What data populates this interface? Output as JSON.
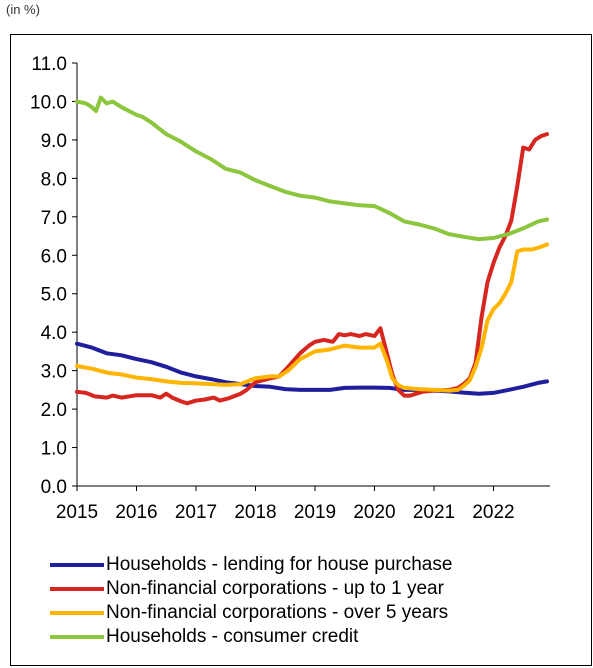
{
  "unit_label": "(in %)",
  "chart_data": {
    "type": "line",
    "title": "",
    "xlabel": "",
    "ylabel": "(in %)",
    "xlim": [
      2015,
      2022.95
    ],
    "ylim": [
      0,
      11
    ],
    "x_ticks": [
      "2015",
      "2016",
      "2017",
      "2018",
      "2019",
      "2020",
      "2021",
      "2022"
    ],
    "y_ticks": [
      "0.0",
      "1.0",
      "2.0",
      "3.0",
      "4.0",
      "5.0",
      "6.0",
      "7.0",
      "8.0",
      "9.0",
      "10.0",
      "11.0"
    ],
    "grid": false,
    "legend_position": "bottom",
    "series": [
      {
        "name": "Households - lending for house purchase",
        "color": "#1f1f9e",
        "points": [
          [
            2015.0,
            3.7
          ],
          [
            2015.25,
            3.6
          ],
          [
            2015.5,
            3.45
          ],
          [
            2015.75,
            3.4
          ],
          [
            2016.0,
            3.3
          ],
          [
            2016.25,
            3.22
          ],
          [
            2016.5,
            3.1
          ],
          [
            2016.75,
            2.95
          ],
          [
            2017.0,
            2.85
          ],
          [
            2017.25,
            2.78
          ],
          [
            2017.5,
            2.7
          ],
          [
            2017.75,
            2.65
          ],
          [
            2018.0,
            2.6
          ],
          [
            2018.25,
            2.58
          ],
          [
            2018.5,
            2.52
          ],
          [
            2018.75,
            2.5
          ],
          [
            2019.0,
            2.5
          ],
          [
            2019.25,
            2.5
          ],
          [
            2019.5,
            2.55
          ],
          [
            2019.75,
            2.56
          ],
          [
            2020.0,
            2.56
          ],
          [
            2020.25,
            2.55
          ],
          [
            2020.5,
            2.5
          ],
          [
            2020.75,
            2.5
          ],
          [
            2021.0,
            2.48
          ],
          [
            2021.25,
            2.46
          ],
          [
            2021.5,
            2.43
          ],
          [
            2021.75,
            2.4
          ],
          [
            2022.0,
            2.42
          ],
          [
            2022.25,
            2.5
          ],
          [
            2022.5,
            2.58
          ],
          [
            2022.75,
            2.68
          ],
          [
            2022.9,
            2.72
          ]
        ]
      },
      {
        "name": "Non-financial corporations - up to 1 year",
        "color": "#d7261f",
        "points": [
          [
            2015.0,
            2.45
          ],
          [
            2015.15,
            2.42
          ],
          [
            2015.3,
            2.33
          ],
          [
            2015.5,
            2.3
          ],
          [
            2015.6,
            2.35
          ],
          [
            2015.75,
            2.3
          ],
          [
            2016.0,
            2.36
          ],
          [
            2016.25,
            2.36
          ],
          [
            2016.4,
            2.3
          ],
          [
            2016.5,
            2.4
          ],
          [
            2016.6,
            2.3
          ],
          [
            2016.75,
            2.2
          ],
          [
            2016.85,
            2.15
          ],
          [
            2017.0,
            2.22
          ],
          [
            2017.15,
            2.25
          ],
          [
            2017.3,
            2.3
          ],
          [
            2017.4,
            2.22
          ],
          [
            2017.55,
            2.28
          ],
          [
            2017.75,
            2.4
          ],
          [
            2017.85,
            2.5
          ],
          [
            2018.0,
            2.7
          ],
          [
            2018.25,
            2.8
          ],
          [
            2018.4,
            2.85
          ],
          [
            2018.55,
            3.1
          ],
          [
            2018.75,
            3.45
          ],
          [
            2018.9,
            3.65
          ],
          [
            2019.0,
            3.75
          ],
          [
            2019.15,
            3.8
          ],
          [
            2019.3,
            3.75
          ],
          [
            2019.4,
            3.95
          ],
          [
            2019.5,
            3.92
          ],
          [
            2019.6,
            3.95
          ],
          [
            2019.75,
            3.9
          ],
          [
            2019.85,
            3.95
          ],
          [
            2020.0,
            3.9
          ],
          [
            2020.1,
            4.1
          ],
          [
            2020.2,
            3.5
          ],
          [
            2020.3,
            2.9
          ],
          [
            2020.4,
            2.5
          ],
          [
            2020.5,
            2.35
          ],
          [
            2020.6,
            2.35
          ],
          [
            2020.7,
            2.4
          ],
          [
            2020.8,
            2.45
          ],
          [
            2021.0,
            2.48
          ],
          [
            2021.25,
            2.5
          ],
          [
            2021.4,
            2.55
          ],
          [
            2021.5,
            2.65
          ],
          [
            2021.6,
            2.8
          ],
          [
            2021.7,
            3.2
          ],
          [
            2021.8,
            4.4
          ],
          [
            2021.9,
            5.3
          ],
          [
            2022.0,
            5.8
          ],
          [
            2022.1,
            6.2
          ],
          [
            2022.2,
            6.5
          ],
          [
            2022.3,
            6.9
          ],
          [
            2022.4,
            7.8
          ],
          [
            2022.5,
            8.8
          ],
          [
            2022.6,
            8.75
          ],
          [
            2022.7,
            9.0
          ],
          [
            2022.8,
            9.1
          ],
          [
            2022.9,
            9.15
          ]
        ]
      },
      {
        "name": "Non-financial corporations - over 5 years",
        "color": "#ffb400",
        "points": [
          [
            2015.0,
            3.12
          ],
          [
            2015.25,
            3.05
          ],
          [
            2015.5,
            2.95
          ],
          [
            2015.75,
            2.9
          ],
          [
            2016.0,
            2.82
          ],
          [
            2016.25,
            2.78
          ],
          [
            2016.5,
            2.72
          ],
          [
            2016.75,
            2.68
          ],
          [
            2017.0,
            2.67
          ],
          [
            2017.25,
            2.65
          ],
          [
            2017.5,
            2.63
          ],
          [
            2017.75,
            2.65
          ],
          [
            2018.0,
            2.8
          ],
          [
            2018.25,
            2.85
          ],
          [
            2018.4,
            2.85
          ],
          [
            2018.55,
            3.0
          ],
          [
            2018.75,
            3.3
          ],
          [
            2019.0,
            3.5
          ],
          [
            2019.25,
            3.55
          ],
          [
            2019.5,
            3.65
          ],
          [
            2019.75,
            3.6
          ],
          [
            2020.0,
            3.6
          ],
          [
            2020.1,
            3.7
          ],
          [
            2020.2,
            3.3
          ],
          [
            2020.3,
            2.8
          ],
          [
            2020.4,
            2.62
          ],
          [
            2020.5,
            2.55
          ],
          [
            2020.75,
            2.52
          ],
          [
            2021.0,
            2.5
          ],
          [
            2021.25,
            2.48
          ],
          [
            2021.4,
            2.5
          ],
          [
            2021.5,
            2.6
          ],
          [
            2021.6,
            2.75
          ],
          [
            2021.7,
            3.1
          ],
          [
            2021.8,
            3.6
          ],
          [
            2021.9,
            4.3
          ],
          [
            2022.0,
            4.6
          ],
          [
            2022.1,
            4.75
          ],
          [
            2022.2,
            5.0
          ],
          [
            2022.3,
            5.3
          ],
          [
            2022.4,
            6.1
          ],
          [
            2022.5,
            6.15
          ],
          [
            2022.65,
            6.15
          ],
          [
            2022.8,
            6.22
          ],
          [
            2022.9,
            6.28
          ]
        ]
      },
      {
        "name": "Households - consumer credit",
        "color": "#8cc63f",
        "points": [
          [
            2015.0,
            10.0
          ],
          [
            2015.15,
            9.95
          ],
          [
            2015.25,
            9.85
          ],
          [
            2015.32,
            9.75
          ],
          [
            2015.4,
            10.1
          ],
          [
            2015.5,
            9.95
          ],
          [
            2015.6,
            10.0
          ],
          [
            2015.75,
            9.85
          ],
          [
            2016.0,
            9.65
          ],
          [
            2016.1,
            9.6
          ],
          [
            2016.25,
            9.45
          ],
          [
            2016.5,
            9.15
          ],
          [
            2016.75,
            8.95
          ],
          [
            2017.0,
            8.7
          ],
          [
            2017.25,
            8.5
          ],
          [
            2017.4,
            8.35
          ],
          [
            2017.5,
            8.25
          ],
          [
            2017.75,
            8.15
          ],
          [
            2018.0,
            7.95
          ],
          [
            2018.25,
            7.8
          ],
          [
            2018.5,
            7.65
          ],
          [
            2018.75,
            7.55
          ],
          [
            2019.0,
            7.5
          ],
          [
            2019.25,
            7.4
          ],
          [
            2019.5,
            7.35
          ],
          [
            2019.75,
            7.3
          ],
          [
            2020.0,
            7.28
          ],
          [
            2020.25,
            7.1
          ],
          [
            2020.5,
            6.88
          ],
          [
            2020.75,
            6.8
          ],
          [
            2021.0,
            6.7
          ],
          [
            2021.25,
            6.55
          ],
          [
            2021.5,
            6.48
          ],
          [
            2021.75,
            6.42
          ],
          [
            2022.0,
            6.45
          ],
          [
            2022.25,
            6.55
          ],
          [
            2022.5,
            6.7
          ],
          [
            2022.75,
            6.88
          ],
          [
            2022.9,
            6.93
          ]
        ]
      }
    ]
  }
}
